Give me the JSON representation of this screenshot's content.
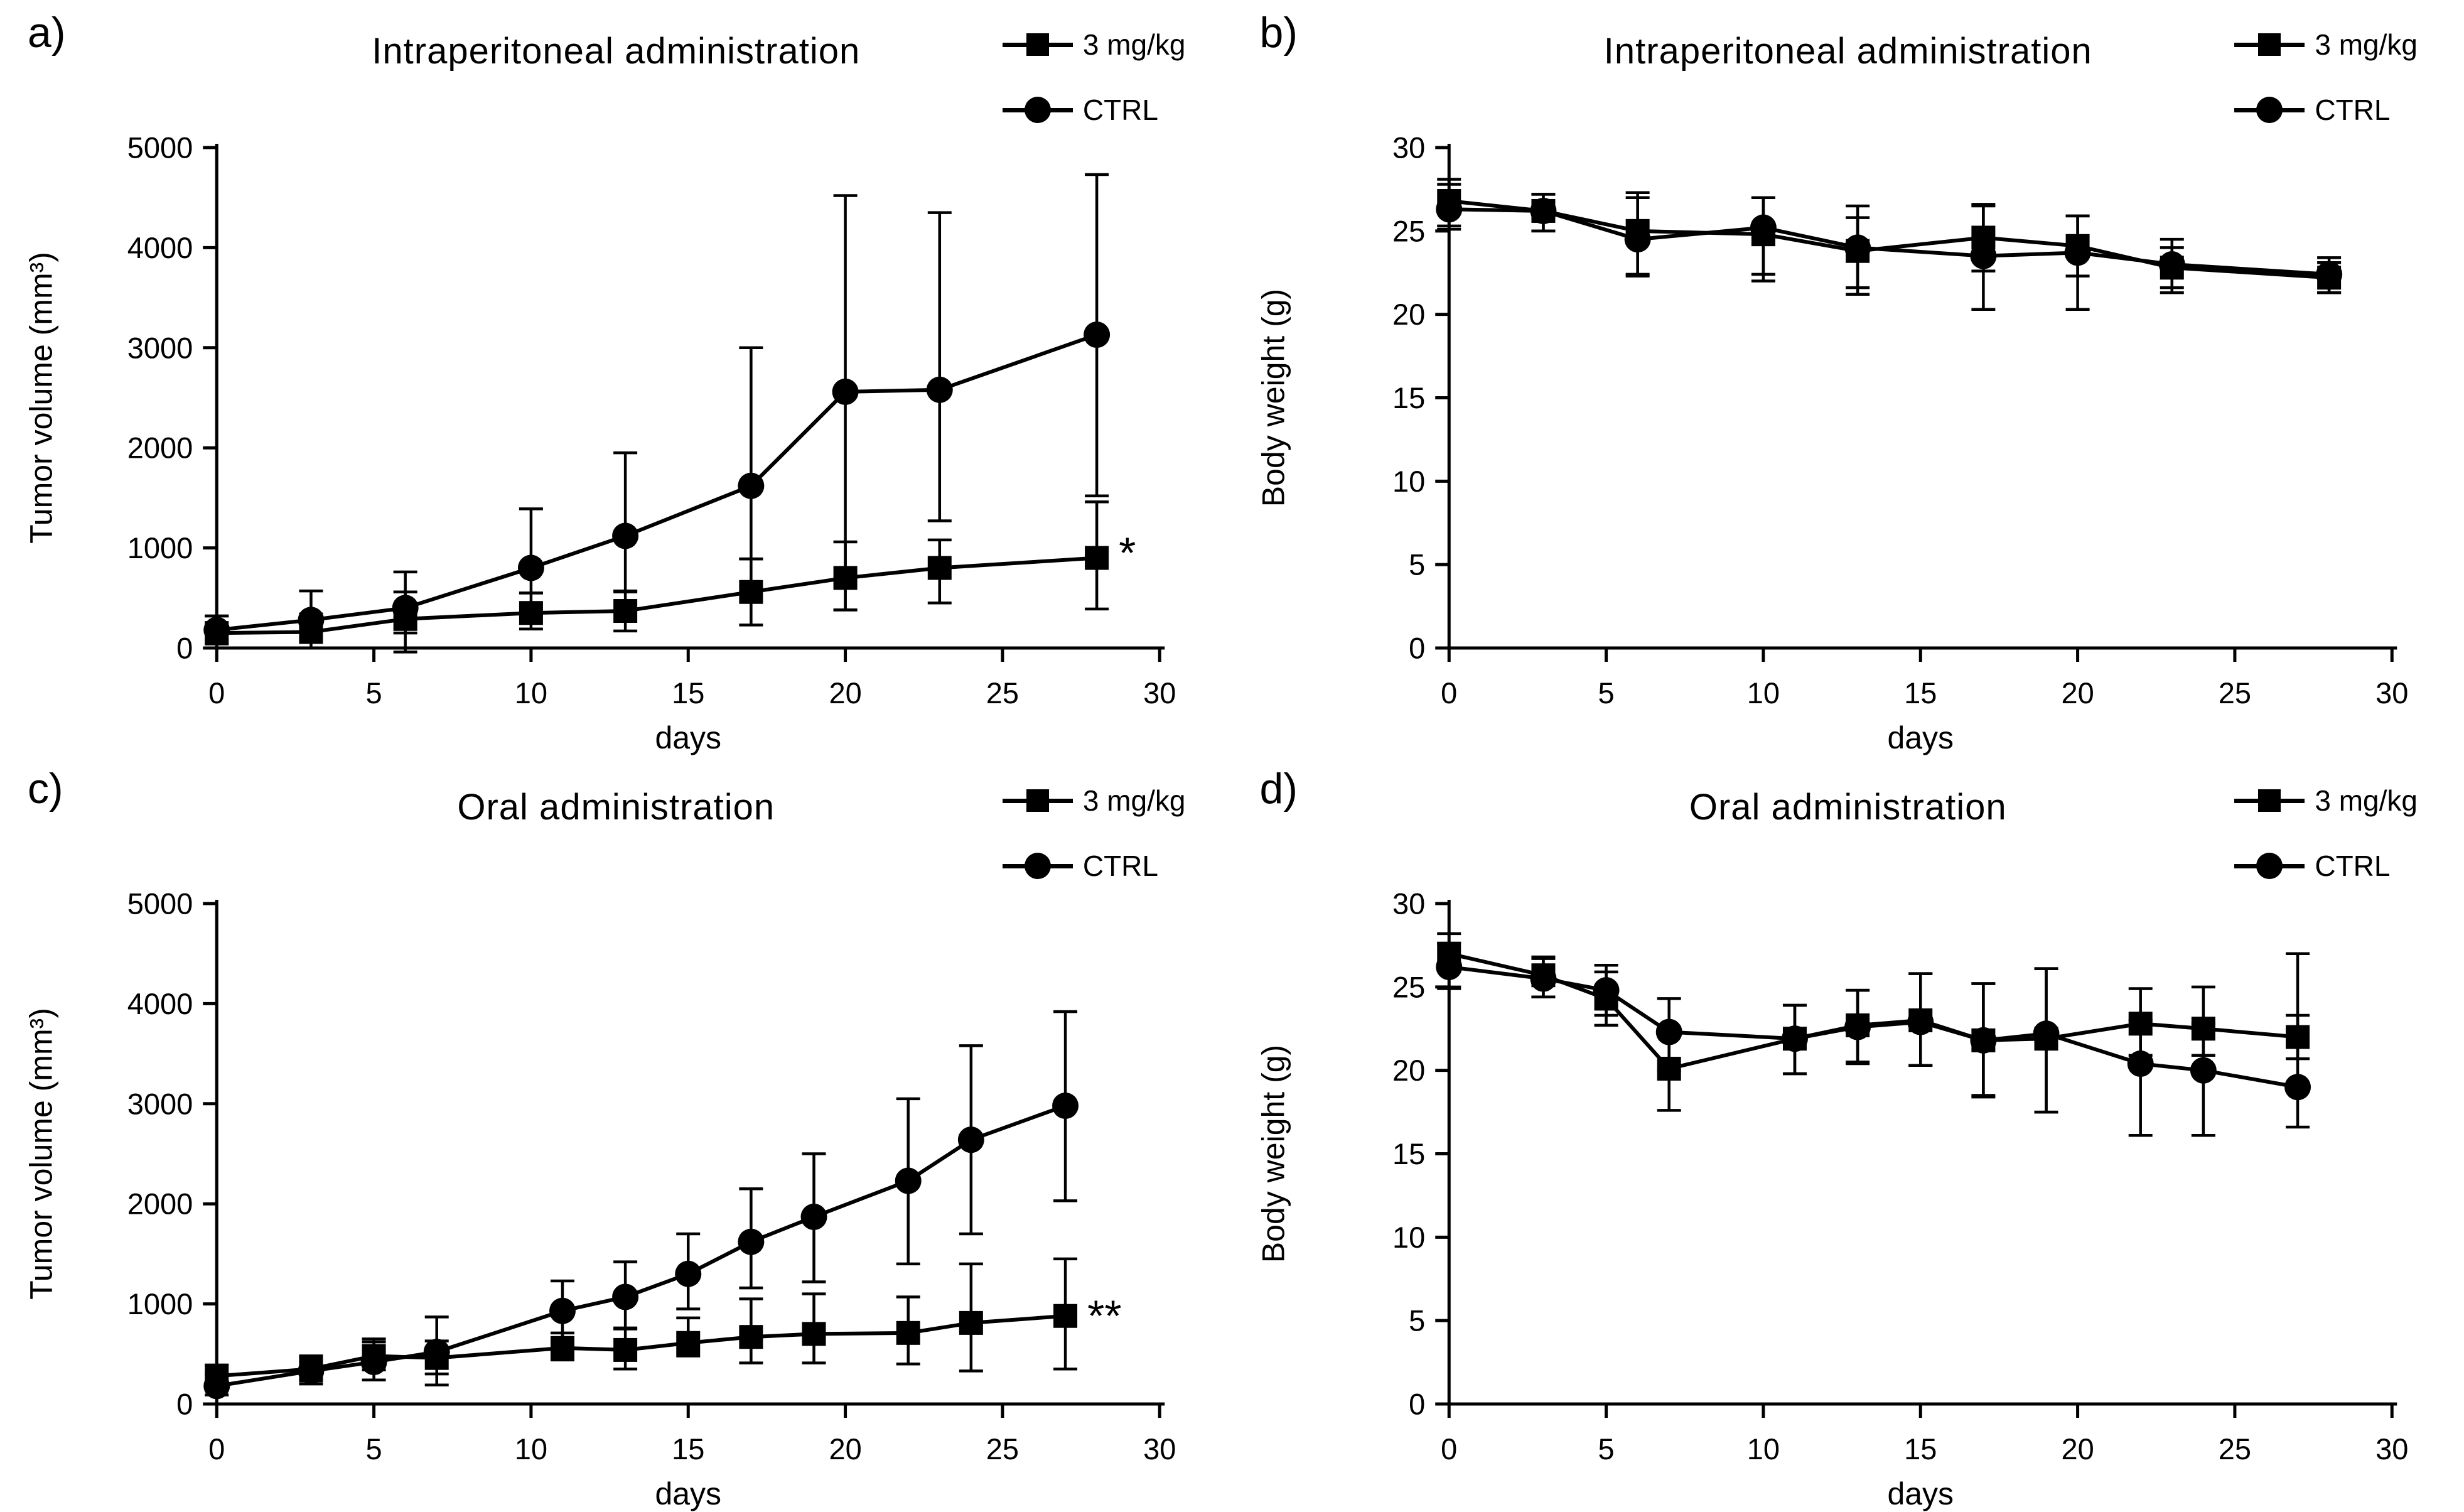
{
  "figure": {
    "background": "#ffffff",
    "ink": "#000000"
  },
  "chart_data": [
    {
      "type": "line",
      "panel_letter": "a)",
      "title": "Intraperitoneal administration",
      "xlabel": "days",
      "ylabel": "Tumor volume (mm³)",
      "xlim": [
        0,
        30
      ],
      "ylim": [
        0,
        5000
      ],
      "x_ticks": [
        0,
        5,
        10,
        15,
        20,
        25,
        30
      ],
      "y_ticks": [
        0,
        1000,
        2000,
        3000,
        4000,
        5000
      ],
      "grid": false,
      "legend_position": "top-right",
      "annotation": {
        "text": "*",
        "day": 28.7,
        "value": 950
      },
      "series": [
        {
          "name": "3 mg/kg",
          "marker": "square",
          "x": [
            0,
            3,
            6,
            10,
            13,
            17,
            20,
            23,
            28
          ],
          "y": [
            150,
            160,
            290,
            350,
            370,
            560,
            700,
            800,
            900
          ],
          "err_up": [
            170,
            180,
            270,
            200,
            200,
            330,
            360,
            280,
            560
          ],
          "err_down": [
            110,
            160,
            330,
            160,
            200,
            330,
            320,
            350,
            510
          ]
        },
        {
          "name": "CTRL",
          "marker": "circle",
          "x": [
            0,
            3,
            6,
            10,
            13,
            17,
            20,
            23,
            28
          ],
          "y": [
            180,
            280,
            400,
            800,
            1120,
            1620,
            2560,
            2580,
            3130
          ],
          "err_up": [
            140,
            290,
            360,
            590,
            830,
            1380,
            1960,
            1770,
            1600
          ],
          "err_down": [
            100,
            180,
            250,
            250,
            560,
            730,
            2180,
            1310,
            1610
          ]
        }
      ]
    },
    {
      "type": "line",
      "panel_letter": "b)",
      "title": "Intraperitoneal administration",
      "xlabel": "days",
      "ylabel": "Body weight (g)",
      "xlim": [
        0,
        30
      ],
      "ylim": [
        0,
        30
      ],
      "x_ticks": [
        0,
        5,
        10,
        15,
        20,
        25,
        30
      ],
      "y_ticks": [
        0,
        5,
        10,
        15,
        20,
        25,
        30
      ],
      "grid": false,
      "legend_position": "top-right",
      "annotation": null,
      "series": [
        {
          "name": "3 mg/kg",
          "marker": "square",
          "x": [
            0,
            3,
            6,
            10,
            13,
            17,
            20,
            23,
            28
          ],
          "y": [
            26.8,
            26.2,
            25.0,
            24.8,
            23.8,
            24.6,
            24.1,
            22.8,
            22.2
          ],
          "err_up": [
            1.3,
            1.0,
            2.3,
            2.2,
            2.0,
            2.0,
            1.8,
            1.2,
            0.9
          ],
          "err_down": [
            1.5,
            1.2,
            2.6,
            2.4,
            2.2,
            2.0,
            1.8,
            1.2,
            0.9
          ]
        },
        {
          "name": "CTRL",
          "marker": "circle",
          "x": [
            0,
            3,
            6,
            10,
            13,
            17,
            20,
            23,
            28
          ],
          "y": [
            26.3,
            26.2,
            24.5,
            25.2,
            24.0,
            23.5,
            23.7,
            23.0,
            22.4
          ],
          "err_up": [
            1.5,
            1.0,
            2.5,
            1.8,
            2.5,
            3.0,
            2.2,
            1.5,
            1.0
          ],
          "err_down": [
            1.2,
            1.2,
            2.2,
            3.2,
            2.8,
            3.2,
            3.4,
            1.7,
            1.1
          ]
        }
      ]
    },
    {
      "type": "line",
      "panel_letter": "c)",
      "title": "Oral administration",
      "xlabel": "days",
      "ylabel": "Tumor volume (mm³)",
      "xlim": [
        0,
        30
      ],
      "ylim": [
        0,
        5000
      ],
      "x_ticks": [
        0,
        5,
        10,
        15,
        20,
        25,
        30
      ],
      "y_ticks": [
        0,
        1000,
        2000,
        3000,
        4000,
        5000
      ],
      "grid": false,
      "legend_position": "top-right",
      "annotation": {
        "text": "**",
        "day": 27.7,
        "value": 880
      },
      "series": [
        {
          "name": "3 mg/kg",
          "marker": "square",
          "x": [
            0,
            3,
            5,
            7,
            11,
            13,
            15,
            17,
            19,
            22,
            24,
            27
          ],
          "y": [
            280,
            350,
            480,
            460,
            560,
            540,
            610,
            670,
            700,
            710,
            810,
            880
          ],
          "err_up": [
            110,
            130,
            140,
            170,
            150,
            210,
            250,
            380,
            400,
            360,
            590,
            570
          ],
          "err_down": [
            100,
            120,
            140,
            160,
            120,
            190,
            130,
            260,
            290,
            310,
            480,
            530
          ]
        },
        {
          "name": "CTRL",
          "marker": "circle",
          "x": [
            0,
            3,
            5,
            7,
            11,
            13,
            15,
            17,
            19,
            22,
            24,
            27
          ],
          "y": [
            180,
            330,
            420,
            520,
            930,
            1070,
            1300,
            1620,
            1870,
            2230,
            2640,
            2980
          ],
          "err_up": [
            120,
            150,
            230,
            350,
            300,
            350,
            400,
            530,
            630,
            820,
            940,
            940
          ],
          "err_down": [
            90,
            130,
            180,
            330,
            280,
            310,
            350,
            460,
            650,
            830,
            940,
            950
          ]
        }
      ]
    },
    {
      "type": "line",
      "panel_letter": "d)",
      "title": "Oral administration",
      "xlabel": "days",
      "ylabel": "Body weight (g)",
      "xlim": [
        0,
        30
      ],
      "ylim": [
        0,
        30
      ],
      "x_ticks": [
        0,
        5,
        10,
        15,
        20,
        25,
        30
      ],
      "y_ticks": [
        0,
        5,
        10,
        15,
        20,
        25,
        30
      ],
      "grid": false,
      "legend_position": "top-right",
      "annotation": null,
      "series": [
        {
          "name": "3 mg/kg",
          "marker": "square",
          "x": [
            0,
            3,
            5,
            7,
            11,
            13,
            15,
            17,
            19,
            22,
            24,
            27
          ],
          "y": [
            27.0,
            25.7,
            24.3,
            20.1,
            21.9,
            22.7,
            23.0,
            21.8,
            21.9,
            22.8,
            22.5,
            22.0
          ],
          "err_up": [
            1.2,
            1.1,
            1.6,
            2.5,
            2.0,
            2.1,
            2.8,
            3.4,
            4.2,
            2.1,
            2.5,
            5.0
          ],
          "err_down": [
            2.1,
            1.3,
            1.6,
            2.5,
            2.1,
            2.2,
            2.7,
            3.4,
            4.4,
            1.9,
            1.6,
            1.3
          ]
        },
        {
          "name": "CTRL",
          "marker": "circle",
          "x": [
            0,
            3,
            5,
            7,
            11,
            13,
            15,
            17,
            19,
            22,
            24,
            27
          ],
          "y": [
            26.2,
            25.5,
            24.8,
            22.3,
            21.9,
            22.6,
            22.9,
            21.8,
            22.2,
            20.4,
            20.0,
            19.0
          ],
          "err_up": [
            1.4,
            1.2,
            1.5,
            2.0,
            2.0,
            2.2,
            2.9,
            3.4,
            3.9,
            2.6,
            2.8,
            4.3
          ],
          "err_down": [
            1.2,
            1.1,
            1.5,
            2.3,
            2.1,
            2.2,
            2.6,
            3.3,
            4.7,
            4.3,
            3.9,
            2.4
          ]
        }
      ]
    }
  ]
}
